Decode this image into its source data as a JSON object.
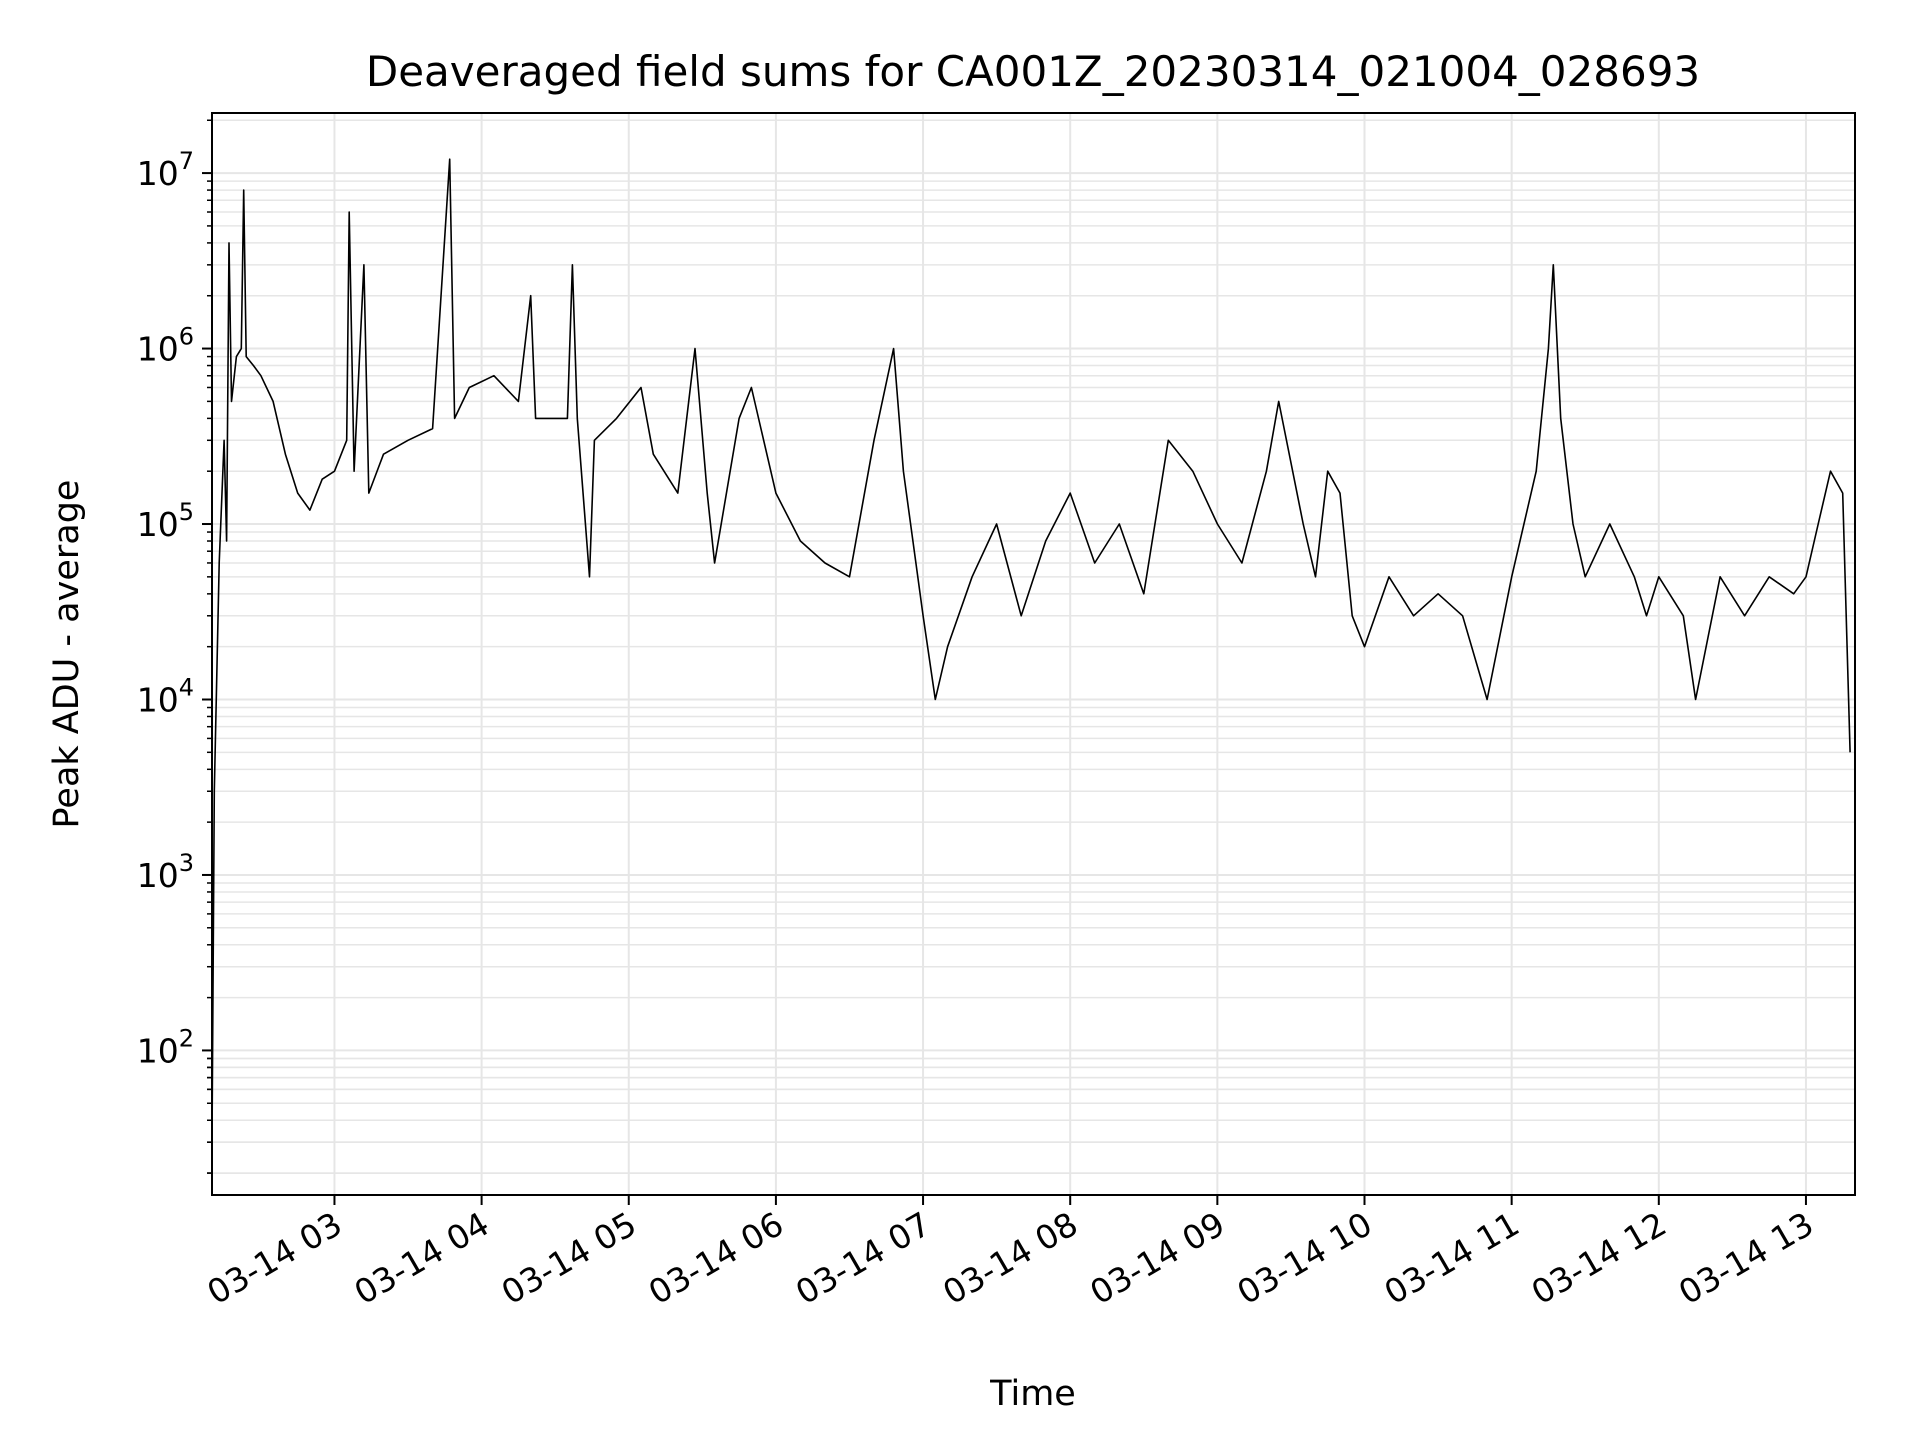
{
  "chart_data": {
    "type": "line",
    "title": "Deaveraged field sums for CA001Z_20230314_021004_028693",
    "xlabel": "Time",
    "ylabel": "Peak ADU - average",
    "yscale": "log",
    "ylim": [
      15,
      22000000
    ],
    "xlim": [
      "2023-03-14 02:10:04",
      "2023-03-14 13:20:00"
    ],
    "grid": true,
    "line_color": "#000000",
    "grid_color": "#e6e6e6",
    "x_tick_labels": [
      "03-14 03",
      "03-14 04",
      "03-14 05",
      "03-14 06",
      "03-14 07",
      "03-14 08",
      "03-14 09",
      "03-14 10",
      "03-14 11",
      "03-14 12",
      "03-14 13"
    ],
    "x_tick_times": [
      "2023-03-14 03:00",
      "2023-03-14 04:00",
      "2023-03-14 05:00",
      "2023-03-14 06:00",
      "2023-03-14 07:00",
      "2023-03-14 08:00",
      "2023-03-14 09:00",
      "2023-03-14 10:00",
      "2023-03-14 11:00",
      "2023-03-14 12:00",
      "2023-03-14 13:00"
    ],
    "y_ticks": [
      {
        "value": 100,
        "base": "10",
        "exp": "2"
      },
      {
        "value": 1000,
        "base": "10",
        "exp": "3"
      },
      {
        "value": 10000,
        "base": "10",
        "exp": "4"
      },
      {
        "value": 100000,
        "base": "10",
        "exp": "5"
      },
      {
        "value": 1000000,
        "base": "10",
        "exp": "6"
      },
      {
        "value": 10000000,
        "base": "10",
        "exp": "7"
      }
    ],
    "series": [
      {
        "points": [
          [
            "2023-03-14 02:10",
            20
          ],
          [
            "2023-03-14 02:11",
            3000
          ],
          [
            "2023-03-14 02:13",
            60000
          ],
          [
            "2023-03-14 02:15",
            300000
          ],
          [
            "2023-03-14 02:16",
            80000
          ],
          [
            "2023-03-14 02:17",
            4000000
          ],
          [
            "2023-03-14 02:18",
            500000
          ],
          [
            "2023-03-14 02:20",
            900000
          ],
          [
            "2023-03-14 02:22",
            1000000
          ],
          [
            "2023-03-14 02:23",
            8000000
          ],
          [
            "2023-03-14 02:24",
            900000
          ],
          [
            "2023-03-14 02:27",
            800000
          ],
          [
            "2023-03-14 02:30",
            700000
          ],
          [
            "2023-03-14 02:35",
            500000
          ],
          [
            "2023-03-14 02:40",
            250000
          ],
          [
            "2023-03-14 02:45",
            150000
          ],
          [
            "2023-03-14 02:50",
            120000
          ],
          [
            "2023-03-14 02:55",
            180000
          ],
          [
            "2023-03-14 03:00",
            200000
          ],
          [
            "2023-03-14 03:05",
            300000
          ],
          [
            "2023-03-14 03:06",
            6000000
          ],
          [
            "2023-03-14 03:08",
            200000
          ],
          [
            "2023-03-14 03:12",
            3000000
          ],
          [
            "2023-03-14 03:14",
            150000
          ],
          [
            "2023-03-14 03:20",
            250000
          ],
          [
            "2023-03-14 03:30",
            300000
          ],
          [
            "2023-03-14 03:40",
            350000
          ],
          [
            "2023-03-14 03:47",
            12000000
          ],
          [
            "2023-03-14 03:49",
            400000
          ],
          [
            "2023-03-14 03:55",
            600000
          ],
          [
            "2023-03-14 04:05",
            700000
          ],
          [
            "2023-03-14 04:15",
            500000
          ],
          [
            "2023-03-14 04:20",
            2000000
          ],
          [
            "2023-03-14 04:22",
            400000
          ],
          [
            "2023-03-14 04:35",
            400000
          ],
          [
            "2023-03-14 04:37",
            3000000
          ],
          [
            "2023-03-14 04:39",
            400000
          ],
          [
            "2023-03-14 04:44",
            50000
          ],
          [
            "2023-03-14 04:46",
            300000
          ],
          [
            "2023-03-14 04:55",
            400000
          ],
          [
            "2023-03-14 05:05",
            600000
          ],
          [
            "2023-03-14 05:10",
            250000
          ],
          [
            "2023-03-14 05:20",
            150000
          ],
          [
            "2023-03-14 05:27",
            1000000
          ],
          [
            "2023-03-14 05:32",
            150000
          ],
          [
            "2023-03-14 05:35",
            60000
          ],
          [
            "2023-03-14 05:45",
            400000
          ],
          [
            "2023-03-14 05:50",
            600000
          ],
          [
            "2023-03-14 06:00",
            150000
          ],
          [
            "2023-03-14 06:10",
            80000
          ],
          [
            "2023-03-14 06:20",
            60000
          ],
          [
            "2023-03-14 06:30",
            50000
          ],
          [
            "2023-03-14 06:40",
            300000
          ],
          [
            "2023-03-14 06:48",
            1000000
          ],
          [
            "2023-03-14 06:52",
            200000
          ],
          [
            "2023-03-14 07:00",
            30000
          ],
          [
            "2023-03-14 07:05",
            10000
          ],
          [
            "2023-03-14 07:10",
            20000
          ],
          [
            "2023-03-14 07:20",
            50000
          ],
          [
            "2023-03-14 07:30",
            100000
          ],
          [
            "2023-03-14 07:40",
            30000
          ],
          [
            "2023-03-14 07:50",
            80000
          ],
          [
            "2023-03-14 08:00",
            150000
          ],
          [
            "2023-03-14 08:10",
            60000
          ],
          [
            "2023-03-14 08:20",
            100000
          ],
          [
            "2023-03-14 08:30",
            40000
          ],
          [
            "2023-03-14 08:40",
            300000
          ],
          [
            "2023-03-14 08:50",
            200000
          ],
          [
            "2023-03-14 09:00",
            100000
          ],
          [
            "2023-03-14 09:10",
            60000
          ],
          [
            "2023-03-14 09:20",
            200000
          ],
          [
            "2023-03-14 09:25",
            500000
          ],
          [
            "2023-03-14 09:35",
            100000
          ],
          [
            "2023-03-14 09:40",
            50000
          ],
          [
            "2023-03-14 09:45",
            200000
          ],
          [
            "2023-03-14 09:50",
            150000
          ],
          [
            "2023-03-14 09:55",
            30000
          ],
          [
            "2023-03-14 10:00",
            20000
          ],
          [
            "2023-03-14 10:10",
            50000
          ],
          [
            "2023-03-14 10:20",
            30000
          ],
          [
            "2023-03-14 10:30",
            40000
          ],
          [
            "2023-03-14 10:40",
            30000
          ],
          [
            "2023-03-14 10:50",
            10000
          ],
          [
            "2023-03-14 11:00",
            50000
          ],
          [
            "2023-03-14 11:10",
            200000
          ],
          [
            "2023-03-14 11:15",
            1000000
          ],
          [
            "2023-03-14 11:17",
            3000000
          ],
          [
            "2023-03-14 11:20",
            400000
          ],
          [
            "2023-03-14 11:25",
            100000
          ],
          [
            "2023-03-14 11:30",
            50000
          ],
          [
            "2023-03-14 11:40",
            100000
          ],
          [
            "2023-03-14 11:50",
            50000
          ],
          [
            "2023-03-14 11:55",
            30000
          ],
          [
            "2023-03-14 12:00",
            50000
          ],
          [
            "2023-03-14 12:10",
            30000
          ],
          [
            "2023-03-14 12:15",
            10000
          ],
          [
            "2023-03-14 12:25",
            50000
          ],
          [
            "2023-03-14 12:35",
            30000
          ],
          [
            "2023-03-14 12:45",
            50000
          ],
          [
            "2023-03-14 12:55",
            40000
          ],
          [
            "2023-03-14 13:00",
            50000
          ],
          [
            "2023-03-14 13:05",
            100000
          ],
          [
            "2023-03-14 13:10",
            200000
          ],
          [
            "2023-03-14 13:15",
            150000
          ],
          [
            "2023-03-14 13:18",
            5000
          ]
        ]
      }
    ]
  }
}
